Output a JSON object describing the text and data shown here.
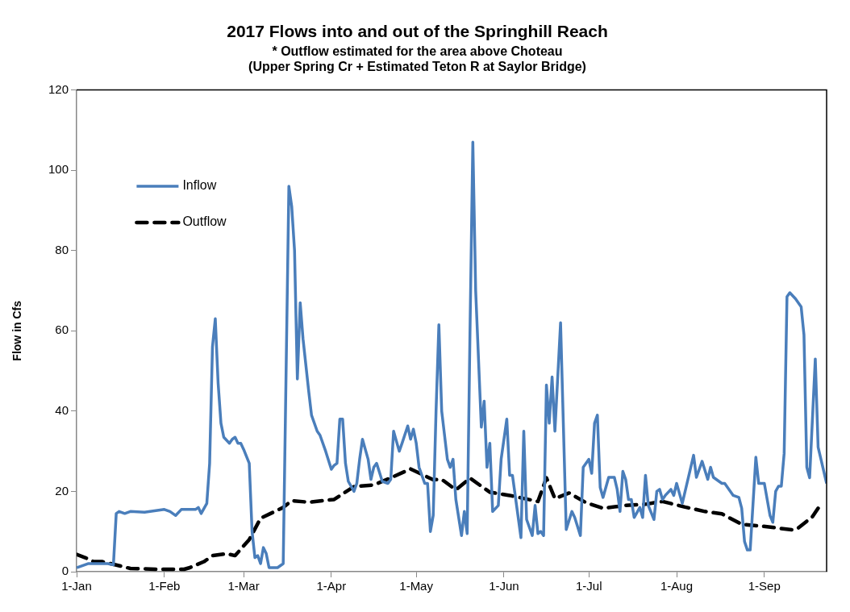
{
  "chart_data": {
    "type": "line",
    "title": "2017 Flows into and out of the Springhill Reach",
    "subtitle": "* Outflow estimated for the area above Choteau\n(Upper Spring Cr + Estimated Teton R at Saylor Bridge)",
    "ylabel": "Flow in Cfs",
    "xlim": [
      "2017-01-01",
      "2017-09-23"
    ],
    "xticks": [
      {
        "value": "2017-01-01",
        "label": "1-Jan"
      },
      {
        "value": "2017-02-01",
        "label": "1-Feb"
      },
      {
        "value": "2017-03-01",
        "label": "1-Mar"
      },
      {
        "value": "2017-04-01",
        "label": "1-Apr"
      },
      {
        "value": "2017-05-01",
        "label": "1-May"
      },
      {
        "value": "2017-06-01",
        "label": "1-Jun"
      },
      {
        "value": "2017-07-01",
        "label": "1-Jul"
      },
      {
        "value": "2017-08-01",
        "label": "1-Aug"
      },
      {
        "value": "2017-09-01",
        "label": "1-Sep"
      }
    ],
    "ylim": [
      0,
      120
    ],
    "yticks": [
      0,
      20,
      40,
      60,
      80,
      100,
      120
    ],
    "grid": false,
    "legend": "top left",
    "marker": "none",
    "series": [
      {
        "name": "Inflow",
        "color": "#4a7ebb",
        "line_style": "solid",
        "x": [
          "2017-01-01",
          "2017-01-03",
          "2017-01-05",
          "2017-01-12",
          "2017-01-14",
          "2017-01-15",
          "2017-01-16",
          "2017-01-18",
          "2017-01-20",
          "2017-01-25",
          "2017-02-01",
          "2017-02-03",
          "2017-02-05",
          "2017-02-07",
          "2017-02-12",
          "2017-02-13",
          "2017-02-14",
          "2017-02-16",
          "2017-02-17",
          "2017-02-18",
          "2017-02-19",
          "2017-02-20",
          "2017-02-21",
          "2017-02-22",
          "2017-02-24",
          "2017-02-25",
          "2017-02-26",
          "2017-02-27",
          "2017-02-28",
          "2017-03-01",
          "2017-03-03",
          "2017-03-04",
          "2017-03-05",
          "2017-03-06",
          "2017-03-07",
          "2017-03-08",
          "2017-03-09",
          "2017-03-10",
          "2017-03-13",
          "2017-03-15",
          "2017-03-17",
          "2017-03-18",
          "2017-03-19",
          "2017-03-20",
          "2017-03-21",
          "2017-03-22",
          "2017-03-24",
          "2017-03-25",
          "2017-03-27",
          "2017-03-28",
          "2017-03-30",
          "2017-04-01",
          "2017-04-02",
          "2017-04-03",
          "2017-04-04",
          "2017-04-05",
          "2017-04-06",
          "2017-04-07",
          "2017-04-09",
          "2017-04-10",
          "2017-04-11",
          "2017-04-12",
          "2017-04-14",
          "2017-04-15",
          "2017-04-16",
          "2017-04-17",
          "2017-04-19",
          "2017-04-21",
          "2017-04-22",
          "2017-04-23",
          "2017-04-25",
          "2017-04-26",
          "2017-04-28",
          "2017-04-29",
          "2017-04-30",
          "2017-05-01",
          "2017-05-02",
          "2017-05-04",
          "2017-05-05",
          "2017-05-06",
          "2017-05-07",
          "2017-05-08",
          "2017-05-09",
          "2017-05-10",
          "2017-05-12",
          "2017-05-13",
          "2017-05-14",
          "2017-05-15",
          "2017-05-17",
          "2017-05-18",
          "2017-05-19",
          "2017-05-20",
          "2017-05-21",
          "2017-05-22",
          "2017-05-24",
          "2017-05-25",
          "2017-05-26",
          "2017-05-27",
          "2017-05-28",
          "2017-05-30",
          "2017-05-31",
          "2017-06-02",
          "2017-06-03",
          "2017-06-04",
          "2017-06-07",
          "2017-06-08",
          "2017-06-09",
          "2017-06-11",
          "2017-06-12",
          "2017-06-13",
          "2017-06-14",
          "2017-06-15",
          "2017-06-16",
          "2017-06-17",
          "2017-06-18",
          "2017-06-19",
          "2017-06-21",
          "2017-06-23",
          "2017-06-25",
          "2017-06-26",
          "2017-06-28",
          "2017-06-29",
          "2017-07-01",
          "2017-07-02",
          "2017-07-03",
          "2017-07-04",
          "2017-07-05",
          "2017-07-06",
          "2017-07-08",
          "2017-07-10",
          "2017-07-11",
          "2017-07-12",
          "2017-07-13",
          "2017-07-14",
          "2017-07-15",
          "2017-07-16",
          "2017-07-17",
          "2017-07-19",
          "2017-07-20",
          "2017-07-21",
          "2017-07-22",
          "2017-07-24",
          "2017-07-25",
          "2017-07-26",
          "2017-07-27",
          "2017-07-28",
          "2017-07-30",
          "2017-07-31",
          "2017-08-01",
          "2017-08-03",
          "2017-08-07",
          "2017-08-08",
          "2017-08-10",
          "2017-08-12",
          "2017-08-13",
          "2017-08-14",
          "2017-08-17",
          "2017-08-18",
          "2017-08-21",
          "2017-08-23",
          "2017-08-24",
          "2017-08-25",
          "2017-08-26",
          "2017-08-27",
          "2017-08-29",
          "2017-08-30",
          "2017-09-01",
          "2017-09-03",
          "2017-09-04",
          "2017-09-05",
          "2017-09-06",
          "2017-09-07",
          "2017-09-08",
          "2017-09-09",
          "2017-09-10",
          "2017-09-12",
          "2017-09-14",
          "2017-09-15",
          "2017-09-16",
          "2017-09-17",
          "2017-09-19",
          "2017-09-20",
          "2017-09-23"
        ],
        "values": [
          1,
          1.5,
          2,
          2,
          1.7,
          14.5,
          15,
          14.5,
          15,
          14.8,
          15.5,
          15,
          14,
          15.5,
          15.5,
          16,
          14.5,
          17,
          27,
          56,
          63,
          47,
          37,
          33.5,
          32,
          33,
          33.5,
          32,
          32,
          30.5,
          27,
          10,
          3.5,
          4,
          2,
          6,
          4.5,
          1,
          1,
          2,
          96,
          91,
          80,
          48,
          67,
          58,
          45,
          39,
          35,
          34,
          30,
          25.5,
          26.5,
          27,
          38,
          38,
          27,
          22.5,
          20,
          22,
          28,
          33,
          28,
          23,
          26,
          27,
          22.5,
          22,
          23,
          35,
          30,
          32,
          36.3,
          33,
          35.5,
          32,
          26,
          22,
          22,
          10,
          14,
          40,
          61.5,
          40,
          28,
          26,
          28,
          18,
          9,
          15,
          9.5,
          60,
          107,
          70,
          36,
          42.5,
          26,
          32,
          15,
          16.5,
          28,
          38,
          24,
          24,
          8.5,
          35,
          13,
          9,
          16.5,
          9.5,
          10,
          9,
          46.5,
          37,
          48.5,
          35,
          62,
          10.5,
          15,
          13.5,
          9,
          26,
          28,
          24.5,
          37,
          39,
          21,
          18.5,
          23.5,
          23.5,
          20.5,
          15,
          25,
          23,
          18,
          18,
          13.5,
          16,
          13.5,
          24,
          16.5,
          13,
          20,
          20.5,
          18,
          19,
          20.5,
          19,
          22,
          17,
          29,
          23.5,
          27.5,
          23,
          26,
          23.5,
          22,
          22,
          19,
          18.5,
          15.8,
          7.5,
          5.4,
          5.4,
          28.5,
          22,
          22,
          14,
          12.3,
          20,
          21.3,
          21.3,
          29.5,
          68.5,
          69.5,
          68,
          66,
          59,
          26,
          23.4,
          53,
          31,
          22
        ]
      },
      {
        "name": "Outflow",
        "color": "#000000",
        "line_style": "dashed",
        "x": [
          "2017-01-01",
          "2017-01-04",
          "2017-01-07",
          "2017-01-10",
          "2017-01-13",
          "2017-01-20",
          "2017-01-30",
          "2017-02-08",
          "2017-02-10",
          "2017-02-15",
          "2017-02-18",
          "2017-02-23",
          "2017-02-26",
          "2017-03-03",
          "2017-03-07",
          "2017-03-15",
          "2017-03-18",
          "2017-03-24",
          "2017-04-02",
          "2017-04-09",
          "2017-04-16",
          "2017-04-23",
          "2017-04-29",
          "2017-05-07",
          "2017-05-10",
          "2017-05-15",
          "2017-05-20",
          "2017-05-27",
          "2017-06-03",
          "2017-06-13",
          "2017-06-16",
          "2017-06-19",
          "2017-06-24",
          "2017-06-30",
          "2017-07-06",
          "2017-07-14",
          "2017-07-21",
          "2017-07-27",
          "2017-08-04",
          "2017-08-11",
          "2017-08-17",
          "2017-08-24",
          "2017-09-02",
          "2017-09-11",
          "2017-09-13",
          "2017-09-18",
          "2017-09-20"
        ],
        "values": [
          4.3,
          3.5,
          2.5,
          2.5,
          2,
          0.8,
          0.6,
          0.6,
          1,
          2.5,
          4,
          4.5,
          4,
          8,
          13.3,
          16,
          17.7,
          17.3,
          18,
          21.2,
          21.6,
          23.7,
          25.6,
          22.9,
          23,
          20.4,
          23.3,
          19.8,
          19,
          17.5,
          23.4,
          18.2,
          19.6,
          17.2,
          15.8,
          16.5,
          16.8,
          17.5,
          16.1,
          15,
          14.4,
          11.8,
          11.2,
          10.4,
          10.9,
          13.7,
          15.8
        ]
      }
    ]
  }
}
